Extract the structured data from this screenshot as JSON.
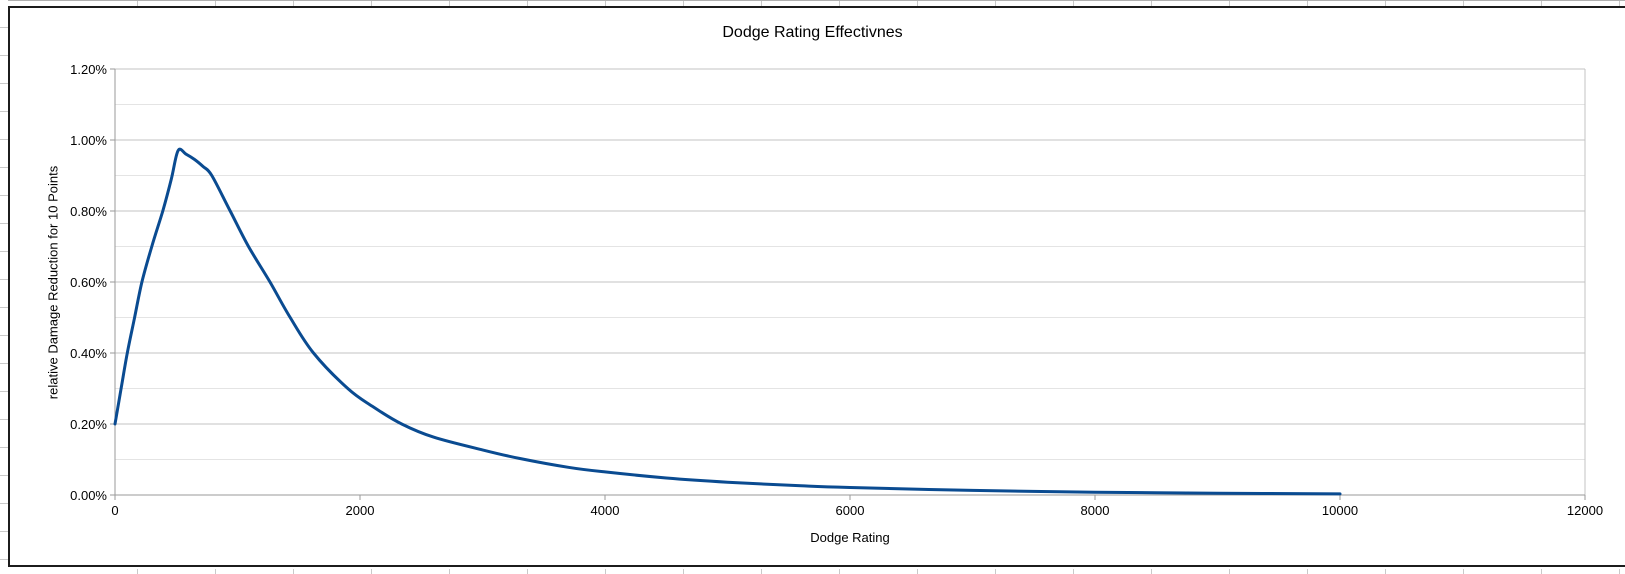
{
  "chart": {
    "title": "Dodge Rating Effectivnes",
    "x_axis": {
      "title": "Dodge Rating",
      "tick_labels": [
        "0",
        "2000",
        "4000",
        "6000",
        "8000",
        "10000",
        "12000"
      ]
    },
    "y_axis": {
      "title": "relative Damage Reduction for 10 Points",
      "tick_labels": [
        "0.00%",
        "0.20%",
        "0.40%",
        "0.60%",
        "0.80%",
        "1.00%",
        "1.20%"
      ]
    },
    "colors": {
      "series_blue": "#0a4b91",
      "major_gridline": "#c3c3c3",
      "minor_gridline": "#e4e4e4",
      "axis_line": "#9a9a9a",
      "chart_border": "#1c1c1c"
    }
  },
  "chart_data": {
    "type": "line",
    "title": "Dodge Rating Effectivnes",
    "xlabel": "Dodge Rating",
    "ylabel": "relative Damage Reduction for 10 Points",
    "xlim": [
      0,
      12000
    ],
    "ylim_percent": [
      0.0,
      1.2
    ],
    "x_major_ticks": [
      0,
      2000,
      4000,
      6000,
      8000,
      10000,
      12000
    ],
    "y_major_ticks_percent": [
      0.0,
      0.2,
      0.4,
      0.6,
      0.8,
      1.0,
      1.2
    ],
    "y_minor_step_percent": 0.1,
    "grid": "horizontal gridlines only, major and minor; plot area bordered left/right",
    "legend": "none",
    "series": [
      {
        "name": "relative damage reduction per 10 points of dodge rating",
        "color": "#0a4b91",
        "x": [
          0,
          50,
          100,
          160,
          220,
          300,
          390,
          460,
          515,
          580,
          650,
          720,
          790,
          940,
          1090,
          1265,
          1430,
          1620,
          1900,
          2100,
          2340,
          2600,
          3000,
          3300,
          3700,
          4000,
          4500,
          5000,
          5600,
          6000,
          7000,
          8000,
          9000,
          10000
        ],
        "y_percent": [
          0.2,
          0.3,
          0.4,
          0.5,
          0.6,
          0.7,
          0.8,
          0.89,
          0.97,
          0.96,
          0.945,
          0.925,
          0.9,
          0.8,
          0.7,
          0.6,
          0.5,
          0.4,
          0.3,
          0.25,
          0.2,
          0.163,
          0.127,
          0.103,
          0.078,
          0.065,
          0.048,
          0.036,
          0.026,
          0.021,
          0.013,
          0.008,
          0.005,
          0.003
        ]
      }
    ],
    "annotations": "curve starts at (0, 0.20%), peaks near (510, 0.97%), decays toward 0; series ends at x=10000 while axis extends to 12000"
  }
}
